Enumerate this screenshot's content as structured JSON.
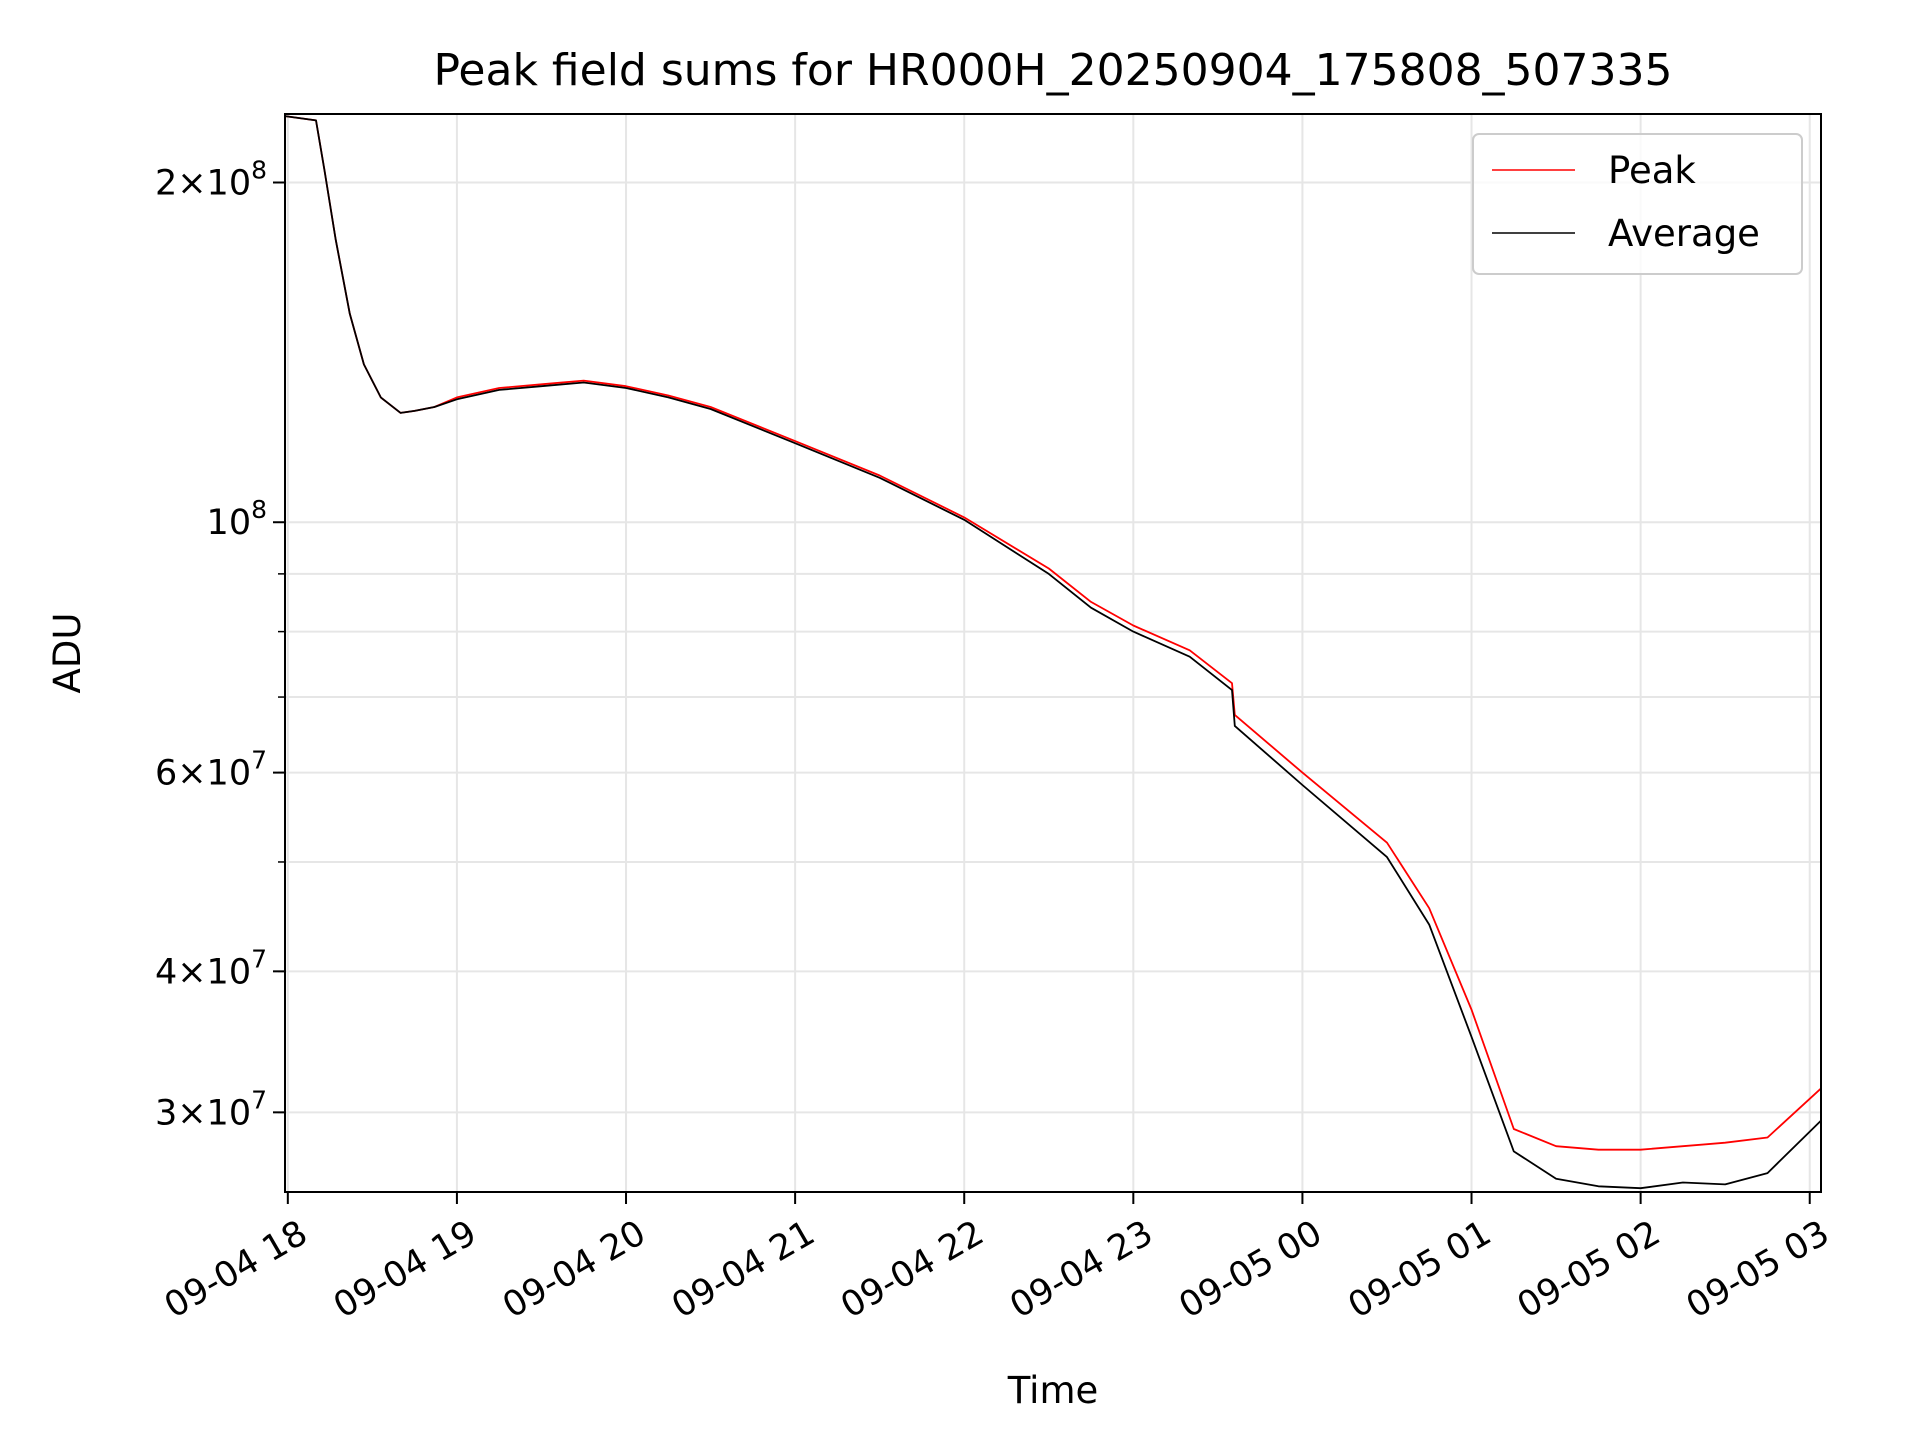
{
  "chart_data": {
    "type": "line",
    "title": "Peak field sums for HR000H_20250904_175808_507335",
    "xlabel": "Time",
    "ylabel": "ADU",
    "y_scale": "log",
    "ylim": [
      25500000,
      230000000
    ],
    "xlim": [
      "2025-09-04 17:59",
      "2025-09-05 03:04"
    ],
    "x_ticks": [
      "09-04 18",
      "09-04 19",
      "09-04 20",
      "09-04 21",
      "09-04 22",
      "09-04 23",
      "09-05 00",
      "09-05 01",
      "09-05 02",
      "09-05 03"
    ],
    "y_ticks": [
      {
        "value": 30000000,
        "mantissa": "3",
        "exponent": "7"
      },
      {
        "value": 40000000,
        "mantissa": "4",
        "exponent": "7"
      },
      {
        "value": 60000000,
        "mantissa": "6",
        "exponent": "7"
      },
      {
        "value": 100000000,
        "mantissa": "",
        "exponent": "8"
      },
      {
        "value": 200000000,
        "mantissa": "2",
        "exponent": "8"
      }
    ],
    "grid": true,
    "legend_position": "top-right",
    "series": [
      {
        "name": "Peak",
        "color": "#ff0000",
        "x": [
          "2025-09-04 17:59",
          "2025-09-04 18:10",
          "2025-09-04 18:13",
          "2025-09-04 18:17",
          "2025-09-04 18:22",
          "2025-09-04 18:27",
          "2025-09-04 18:33",
          "2025-09-04 18:40",
          "2025-09-04 18:45",
          "2025-09-04 18:52",
          "2025-09-04 19:00",
          "2025-09-04 19:15",
          "2025-09-04 19:30",
          "2025-09-04 19:45",
          "2025-09-04 20:00",
          "2025-09-04 20:15",
          "2025-09-04 20:30",
          "2025-09-04 21:00",
          "2025-09-04 21:30",
          "2025-09-04 22:00",
          "2025-09-04 22:30",
          "2025-09-04 22:45",
          "2025-09-04 23:00",
          "2025-09-04 23:20",
          "2025-09-04 23:35",
          "2025-09-04 23:36",
          "2025-09-05 00:00",
          "2025-09-05 00:30",
          "2025-09-05 00:45",
          "2025-09-05 01:00",
          "2025-09-05 01:15",
          "2025-09-05 01:30",
          "2025-09-05 01:45",
          "2025-09-05 02:00",
          "2025-09-05 02:15",
          "2025-09-05 02:30",
          "2025-09-05 02:45",
          "2025-09-05 03:04"
        ],
        "y": [
          229000000,
          227000000,
          205000000,
          178000000,
          153000000,
          138000000,
          129000000,
          125000000,
          125500000,
          126500000,
          129000000,
          131500000,
          132500000,
          133500000,
          132000000,
          129500000,
          126500000,
          118000000,
          110000000,
          101000000,
          91000000,
          85000000,
          81000000,
          77000000,
          72000000,
          67500000,
          60000000,
          52000000,
          45500000,
          37000000,
          29000000,
          28000000,
          27800000,
          27800000,
          28000000,
          28200000,
          28500000,
          31500000
        ]
      },
      {
        "name": "Average",
        "color": "#000000",
        "x": [
          "2025-09-04 17:59",
          "2025-09-04 18:10",
          "2025-09-04 18:13",
          "2025-09-04 18:17",
          "2025-09-04 18:22",
          "2025-09-04 18:27",
          "2025-09-04 18:33",
          "2025-09-04 18:40",
          "2025-09-04 18:45",
          "2025-09-04 18:52",
          "2025-09-04 19:00",
          "2025-09-04 19:15",
          "2025-09-04 19:30",
          "2025-09-04 19:45",
          "2025-09-04 20:00",
          "2025-09-04 20:15",
          "2025-09-04 20:30",
          "2025-09-04 21:00",
          "2025-09-04 21:30",
          "2025-09-04 22:00",
          "2025-09-04 22:30",
          "2025-09-04 22:45",
          "2025-09-04 23:00",
          "2025-09-04 23:20",
          "2025-09-04 23:35",
          "2025-09-04 23:36",
          "2025-09-05 00:00",
          "2025-09-05 00:30",
          "2025-09-05 00:45",
          "2025-09-05 01:00",
          "2025-09-05 01:15",
          "2025-09-05 01:30",
          "2025-09-05 01:45",
          "2025-09-05 02:00",
          "2025-09-05 02:15",
          "2025-09-05 02:30",
          "2025-09-05 02:45",
          "2025-09-05 03:04"
        ],
        "y": [
          229000000,
          227000000,
          205000000,
          178000000,
          153000000,
          138000000,
          129000000,
          125000000,
          125500000,
          126500000,
          128500000,
          131000000,
          132000000,
          133000000,
          131500000,
          129000000,
          126000000,
          117500000,
          109500000,
          100500000,
          90000000,
          84000000,
          80000000,
          76000000,
          71000000,
          66000000,
          58500000,
          50500000,
          44000000,
          35000000,
          27700000,
          26200000,
          25800000,
          25700000,
          26000000,
          25900000,
          26500000,
          29500000
        ]
      }
    ]
  }
}
